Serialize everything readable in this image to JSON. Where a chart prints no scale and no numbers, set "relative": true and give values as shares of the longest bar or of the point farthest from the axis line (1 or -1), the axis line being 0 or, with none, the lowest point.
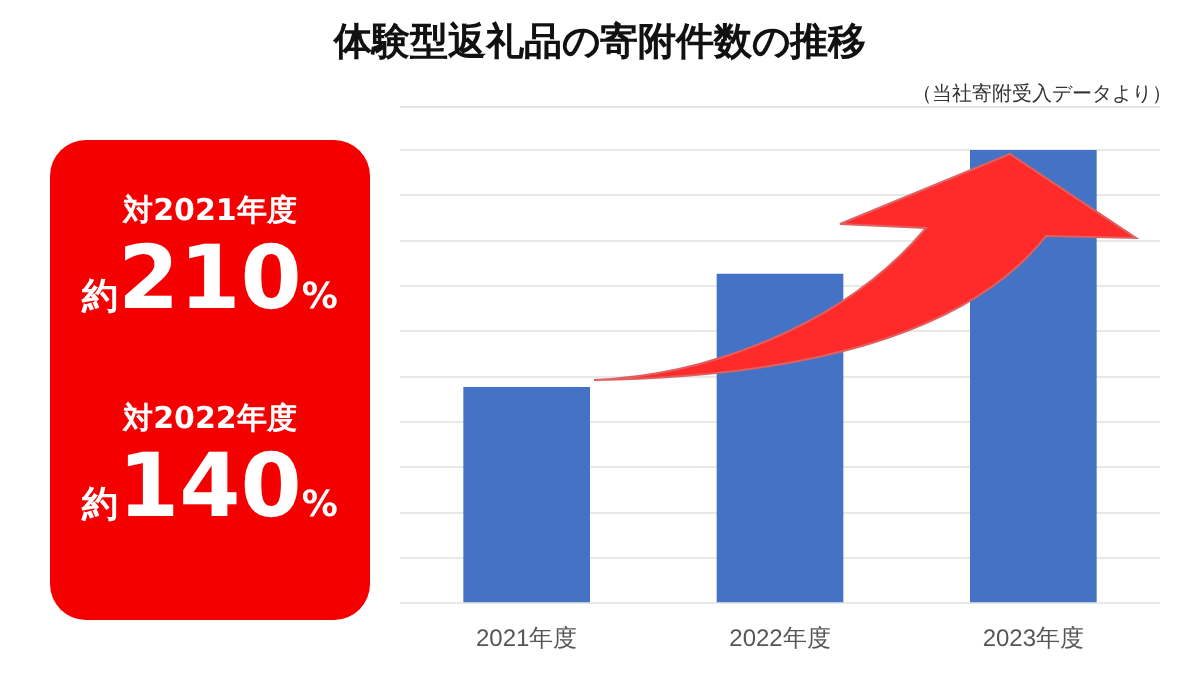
{
  "chart_data": {
    "type": "bar",
    "title": "体験型返礼品の寄附件数の推移",
    "categories": [
      "2021年度",
      "2022年度",
      "2023年度"
    ],
    "values": [
      0.477,
      0.727,
      1
    ],
    "color": "#4472c4",
    "relative": true,
    "grid": "y",
    "legend": false,
    "tick_labels": "x",
    "annotations": [
      "（当社寄附受入データより）",
      "対2021年度",
      "約210%",
      "対2022年度",
      "約140%"
    ]
  }
}
